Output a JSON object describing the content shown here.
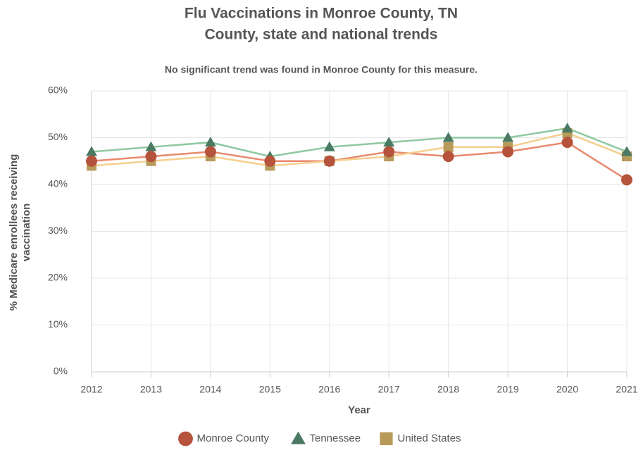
{
  "chart_data": {
    "type": "line",
    "title": [
      "Flu Vaccinations in Monroe County, TN",
      "County, state and national trends"
    ],
    "subtitle": "No significant trend was found in Monroe County for this measure.",
    "x_label": "Year",
    "y_label": [
      "% Medicare enrollees receiving",
      "vaccination"
    ],
    "categories": [
      "2012",
      "2013",
      "2014",
      "2015",
      "2016",
      "2017",
      "2018",
      "2019",
      "2020",
      "2021"
    ],
    "series": [
      {
        "name": "Monroe County",
        "color": "#b5533c",
        "line_color": "#e8896e",
        "marker": "circle",
        "values": [
          45,
          46,
          47,
          45,
          45,
          47,
          46,
          47,
          49,
          41
        ]
      },
      {
        "name": "Tennessee",
        "color": "#4a7a63",
        "line_color": "#8ec9a0",
        "marker": "triangle",
        "values": [
          47,
          48,
          49,
          46,
          48,
          49,
          50,
          50,
          52,
          47
        ]
      },
      {
        "name": "United States",
        "color": "#b89a5a",
        "line_color": "#f5cf8e",
        "marker": "square",
        "values": [
          44,
          45,
          46,
          44,
          45,
          46,
          48,
          48,
          51,
          46
        ]
      }
    ],
    "ylim": [
      0,
      60
    ],
    "yticks": [
      {
        "value": 0,
        "label": "0%"
      },
      {
        "value": 10,
        "label": "10%"
      },
      {
        "value": 20,
        "label": "20%"
      },
      {
        "value": 30,
        "label": "30%"
      },
      {
        "value": 40,
        "label": "40%"
      },
      {
        "value": 50,
        "label": "50%"
      },
      {
        "value": 60,
        "label": "60%"
      }
    ],
    "grid": true,
    "legend": "bottom"
  }
}
